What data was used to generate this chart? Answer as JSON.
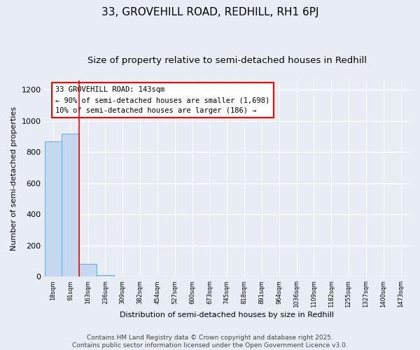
{
  "title": "33, GROVEHILL ROAD, REDHILL, RH1 6PJ",
  "subtitle": "Size of property relative to semi-detached houses in Redhill",
  "xlabel": "Distribution of semi-detached houses by size in Redhill",
  "ylabel": "Number of semi-detached properties",
  "bar_labels": [
    "18sqm",
    "91sqm",
    "163sqm",
    "236sqm",
    "309sqm",
    "382sqm",
    "454sqm",
    "527sqm",
    "600sqm",
    "673sqm",
    "745sqm",
    "818sqm",
    "891sqm",
    "964sqm",
    "1036sqm",
    "1109sqm",
    "1182sqm",
    "1255sqm",
    "1327sqm",
    "1400sqm",
    "1473sqm"
  ],
  "bar_values": [
    870,
    920,
    85,
    10,
    0,
    0,
    0,
    0,
    0,
    0,
    0,
    0,
    0,
    0,
    0,
    0,
    0,
    0,
    0,
    0,
    0
  ],
  "bar_color": "#c5d8f0",
  "bar_edge_color": "#6aaad4",
  "ylim": [
    0,
    1260
  ],
  "yticks": [
    0,
    200,
    400,
    600,
    800,
    1000,
    1200
  ],
  "annotation_text_line1": "33 GROVEHILL ROAD: 143sqm",
  "annotation_text_line2": "← 90% of semi-detached houses are smaller (1,698)",
  "annotation_text_line3": "10% of semi-detached houses are larger (186) →",
  "red_line_x": 1.5,
  "footnote1": "Contains HM Land Registry data © Crown copyright and database right 2025.",
  "footnote2": "Contains public sector information licensed under the Open Government Licence v3.0.",
  "bg_color": "#e8edf5",
  "plot_bg_color": "#e8edf5",
  "grid_color": "#d0d8e8",
  "title_fontsize": 11,
  "subtitle_fontsize": 9.5,
  "annotation_fontsize": 7.5,
  "footnote_fontsize": 6.5,
  "ylabel_fontsize": 8,
  "xlabel_fontsize": 8
}
